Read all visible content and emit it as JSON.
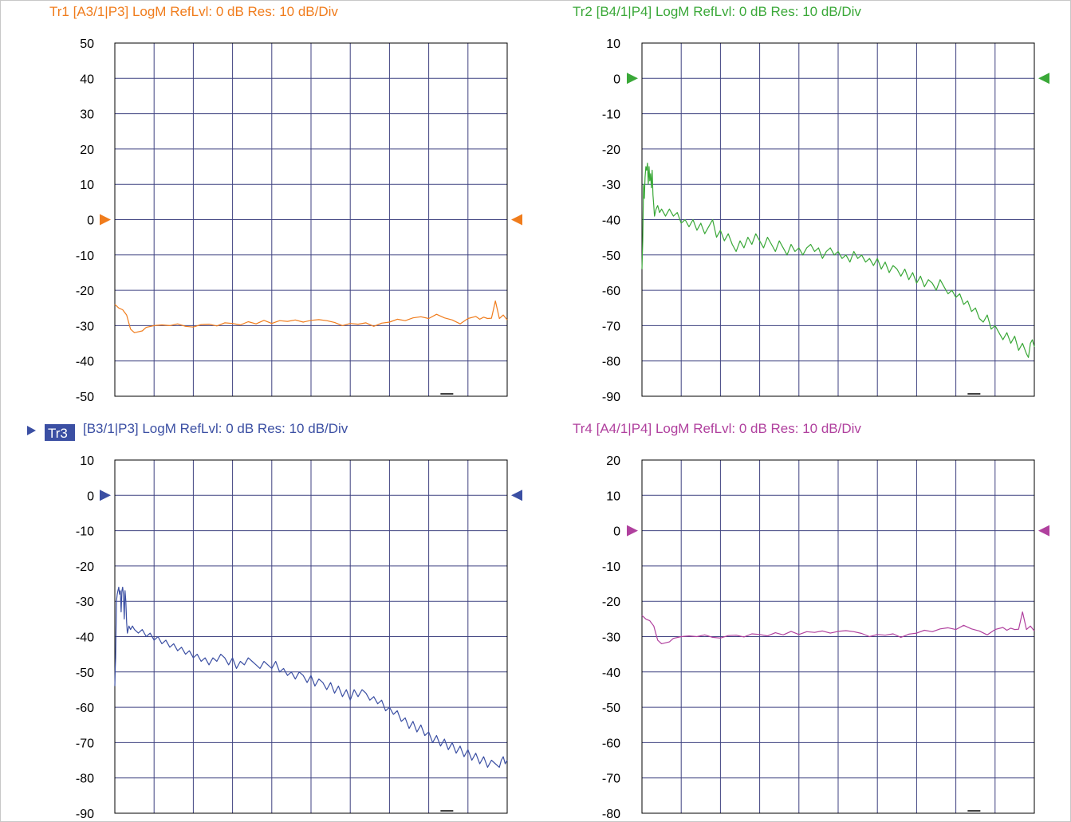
{
  "chart_data": [
    {
      "type": "line",
      "trace": "Tr1",
      "header": "Tr1  [A3/1|P3]  LogM RefLvl: 0  dB Res: 10  dB/Div",
      "color": "#f07c1c",
      "active": false,
      "ylim": [
        -50,
        50
      ],
      "yticks": [
        "50",
        "40",
        "30",
        "20",
        "10",
        "0",
        "-10",
        "-20",
        "-30",
        "-40",
        "-50"
      ],
      "ref_value": 0,
      "x_range": [
        0,
        1
      ],
      "series": [
        {
          "x": [
            0.0,
            0.01,
            0.02,
            0.03,
            0.04,
            0.05,
            0.07,
            0.08,
            0.1,
            0.12,
            0.14,
            0.16,
            0.18,
            0.2,
            0.22,
            0.24,
            0.26,
            0.28,
            0.3,
            0.32,
            0.34,
            0.36,
            0.38,
            0.4,
            0.42,
            0.44,
            0.46,
            0.48,
            0.5,
            0.52,
            0.54,
            0.56,
            0.58,
            0.6,
            0.62,
            0.64,
            0.66,
            0.68,
            0.7,
            0.72,
            0.74,
            0.76,
            0.78,
            0.8,
            0.82,
            0.84,
            0.86,
            0.88,
            0.9,
            0.92,
            0.93,
            0.94,
            0.95,
            0.96,
            0.97,
            0.98,
            0.99,
            1.0
          ],
          "y": [
            -24,
            -25,
            -25.5,
            -27,
            -31,
            -32,
            -31.5,
            -30.5,
            -30,
            -29.8,
            -30,
            -29.5,
            -30.2,
            -30.4,
            -29.7,
            -29.6,
            -30.1,
            -29.2,
            -29.4,
            -29.8,
            -28.9,
            -29.5,
            -28.5,
            -29.4,
            -28.6,
            -28.8,
            -28.4,
            -29,
            -28.5,
            -28.3,
            -28.6,
            -29.1,
            -30,
            -29.4,
            -29.6,
            -29.2,
            -30.2,
            -29.3,
            -29,
            -28.2,
            -28.6,
            -27.8,
            -27.5,
            -28,
            -26.8,
            -27.8,
            -28.4,
            -29.5,
            -28,
            -27.4,
            -28.2,
            -27.6,
            -28,
            -27.9,
            -23,
            -28,
            -27,
            -28.4
          ]
        }
      ]
    },
    {
      "type": "line",
      "trace": "Tr2",
      "header": "Tr2  [B4/1|P4]  LogM RefLvl: 0  dB Res: 10  dB/Div",
      "color": "#3aa838",
      "active": false,
      "ylim": [
        -90,
        10
      ],
      "yticks": [
        "10",
        "0",
        "-10",
        "-20",
        "-30",
        "-40",
        "-50",
        "-60",
        "-70",
        "-80",
        "-90"
      ],
      "ref_value": 0,
      "x_range": [
        0,
        1
      ],
      "series": [
        {
          "x": [
            0.0,
            0.001,
            0.002,
            0.004,
            0.006,
            0.008,
            0.01,
            0.012,
            0.014,
            0.016,
            0.018,
            0.02,
            0.022,
            0.024,
            0.026,
            0.028,
            0.03,
            0.032,
            0.036,
            0.04,
            0.045,
            0.05,
            0.06,
            0.07,
            0.08,
            0.09,
            0.1,
            0.11,
            0.12,
            0.13,
            0.14,
            0.15,
            0.16,
            0.17,
            0.18,
            0.19,
            0.2,
            0.21,
            0.22,
            0.23,
            0.24,
            0.25,
            0.26,
            0.27,
            0.28,
            0.29,
            0.3,
            0.31,
            0.32,
            0.33,
            0.34,
            0.35,
            0.36,
            0.37,
            0.38,
            0.39,
            0.4,
            0.41,
            0.42,
            0.43,
            0.44,
            0.45,
            0.46,
            0.47,
            0.48,
            0.49,
            0.5,
            0.51,
            0.52,
            0.53,
            0.54,
            0.55,
            0.56,
            0.57,
            0.58,
            0.59,
            0.6,
            0.61,
            0.62,
            0.63,
            0.64,
            0.65,
            0.66,
            0.67,
            0.68,
            0.69,
            0.7,
            0.71,
            0.72,
            0.73,
            0.74,
            0.75,
            0.76,
            0.77,
            0.78,
            0.79,
            0.8,
            0.81,
            0.82,
            0.83,
            0.84,
            0.85,
            0.86,
            0.87,
            0.88,
            0.89,
            0.9,
            0.91,
            0.92,
            0.93,
            0.94,
            0.95,
            0.96,
            0.97,
            0.98,
            0.985,
            0.99,
            0.995,
            1.0
          ],
          "y": [
            -54,
            -50,
            -46,
            -30,
            -34,
            -28,
            -25,
            -26,
            -24,
            -30,
            -25,
            -29,
            -27,
            -31,
            -26,
            -33,
            -36,
            -39,
            -37,
            -36,
            -38,
            -37,
            -39,
            -37,
            -39,
            -38,
            -41,
            -40,
            -42,
            -40,
            -43,
            -41,
            -44,
            -42,
            -40,
            -45,
            -43,
            -46,
            -44,
            -47,
            -49,
            -46,
            -48,
            -45,
            -47,
            -44,
            -46,
            -48,
            -45,
            -47,
            -49,
            -46,
            -48,
            -50,
            -47,
            -49,
            -48,
            -50,
            -48,
            -47,
            -49,
            -48,
            -51,
            -49,
            -48,
            -50,
            -49,
            -51,
            -50,
            -52,
            -49,
            -51,
            -50,
            -52,
            -51,
            -53,
            -51,
            -54,
            -52,
            -55,
            -53,
            -54,
            -56,
            -54,
            -57,
            -55,
            -58,
            -56,
            -59,
            -57,
            -58,
            -60,
            -57,
            -59,
            -61,
            -60,
            -62,
            -61,
            -64,
            -63,
            -66,
            -65,
            -68,
            -69,
            -67,
            -71,
            -70,
            -72,
            -74,
            -72,
            -75,
            -73,
            -77,
            -75,
            -78,
            -79,
            -75,
            -74,
            -76
          ]
        }
      ]
    },
    {
      "type": "line",
      "trace": "Tr3",
      "header": "[B3/1|P3]  LogM RefLvl: 0  dB Res: 10  dB/Div",
      "color": "#3b4fa3",
      "active": true,
      "ylim": [
        -90,
        10
      ],
      "yticks": [
        "10",
        "0",
        "-10",
        "-20",
        "-30",
        "-40",
        "-50",
        "-60",
        "-70",
        "-80",
        "-90"
      ],
      "ref_value": 0,
      "x_range": [
        0,
        1
      ],
      "series": [
        {
          "x": [
            0.0,
            0.001,
            0.002,
            0.004,
            0.006,
            0.008,
            0.01,
            0.012,
            0.014,
            0.016,
            0.018,
            0.02,
            0.022,
            0.024,
            0.026,
            0.028,
            0.03,
            0.032,
            0.036,
            0.04,
            0.045,
            0.05,
            0.06,
            0.07,
            0.08,
            0.09,
            0.1,
            0.11,
            0.12,
            0.13,
            0.14,
            0.15,
            0.16,
            0.17,
            0.18,
            0.19,
            0.2,
            0.21,
            0.22,
            0.23,
            0.24,
            0.25,
            0.26,
            0.27,
            0.28,
            0.29,
            0.3,
            0.31,
            0.32,
            0.33,
            0.34,
            0.35,
            0.36,
            0.37,
            0.38,
            0.39,
            0.4,
            0.41,
            0.42,
            0.43,
            0.44,
            0.45,
            0.46,
            0.47,
            0.48,
            0.49,
            0.5,
            0.51,
            0.52,
            0.53,
            0.54,
            0.55,
            0.56,
            0.57,
            0.58,
            0.59,
            0.6,
            0.61,
            0.62,
            0.63,
            0.64,
            0.65,
            0.66,
            0.67,
            0.68,
            0.69,
            0.7,
            0.71,
            0.72,
            0.73,
            0.74,
            0.75,
            0.76,
            0.77,
            0.78,
            0.79,
            0.8,
            0.81,
            0.82,
            0.83,
            0.84,
            0.85,
            0.86,
            0.87,
            0.88,
            0.89,
            0.9,
            0.91,
            0.92,
            0.93,
            0.94,
            0.95,
            0.96,
            0.97,
            0.98,
            0.985,
            0.99,
            0.995,
            1.0
          ],
          "y": [
            -54,
            -49,
            -46,
            -30,
            -28,
            -27,
            -26,
            -28,
            -27,
            -33,
            -27,
            -26,
            -28,
            -35,
            -27,
            -30,
            -36,
            -39,
            -37,
            -38,
            -37,
            -38,
            -39,
            -38,
            -40,
            -39,
            -41,
            -40,
            -42,
            -41,
            -43,
            -42,
            -44,
            -43,
            -45,
            -44,
            -46,
            -45,
            -47,
            -46,
            -48,
            -46,
            -47,
            -45,
            -46,
            -48,
            -46,
            -49,
            -47,
            -48,
            -46,
            -47,
            -48,
            -49,
            -47,
            -48,
            -49,
            -47,
            -50,
            -49,
            -51,
            -50,
            -52,
            -50,
            -51,
            -53,
            -51,
            -54,
            -52,
            -53,
            -55,
            -53,
            -56,
            -54,
            -57,
            -55,
            -58,
            -55,
            -57,
            -55,
            -56,
            -58,
            -57,
            -59,
            -58,
            -61,
            -60,
            -62,
            -61,
            -64,
            -63,
            -66,
            -64,
            -67,
            -65,
            -68,
            -67,
            -70,
            -68,
            -71,
            -69,
            -72,
            -70,
            -73,
            -71,
            -74,
            -72,
            -75,
            -73,
            -76,
            -74,
            -77,
            -75,
            -76,
            -77,
            -75,
            -74,
            -76,
            -75
          ]
        }
      ]
    },
    {
      "type": "line",
      "trace": "Tr4",
      "header": "Tr4  [A4/1|P4]  LogM RefLvl: 0  dB Res: 10  dB/Div",
      "color": "#b0409e",
      "active": false,
      "ylim": [
        -80,
        20
      ],
      "yticks": [
        "20",
        "10",
        "0",
        "-10",
        "-20",
        "-30",
        "-40",
        "-50",
        "-60",
        "-70",
        "-80"
      ],
      "ref_value": 0,
      "x_range": [
        0,
        1
      ],
      "series": [
        {
          "x": [
            0.0,
            0.01,
            0.02,
            0.03,
            0.04,
            0.05,
            0.07,
            0.08,
            0.1,
            0.12,
            0.14,
            0.16,
            0.18,
            0.2,
            0.22,
            0.24,
            0.26,
            0.28,
            0.3,
            0.32,
            0.34,
            0.36,
            0.38,
            0.4,
            0.42,
            0.44,
            0.46,
            0.48,
            0.5,
            0.52,
            0.54,
            0.56,
            0.58,
            0.6,
            0.62,
            0.64,
            0.66,
            0.68,
            0.7,
            0.72,
            0.74,
            0.76,
            0.78,
            0.8,
            0.82,
            0.84,
            0.86,
            0.88,
            0.9,
            0.92,
            0.93,
            0.94,
            0.95,
            0.96,
            0.97,
            0.98,
            0.99,
            1.0
          ],
          "y": [
            -24,
            -25,
            -25.5,
            -27,
            -31,
            -32,
            -31.5,
            -30.5,
            -30,
            -29.8,
            -30,
            -29.5,
            -30.2,
            -30.4,
            -29.7,
            -29.6,
            -30.1,
            -29.2,
            -29.4,
            -29.8,
            -28.9,
            -29.5,
            -28.5,
            -29.4,
            -28.6,
            -28.8,
            -28.4,
            -29,
            -28.5,
            -28.3,
            -28.6,
            -29.1,
            -30,
            -29.4,
            -29.6,
            -29.2,
            -30.2,
            -29.3,
            -29,
            -28.2,
            -28.6,
            -27.8,
            -27.5,
            -28,
            -26.8,
            -27.8,
            -28.4,
            -29.5,
            -28,
            -27.4,
            -28.2,
            -27.6,
            -28,
            -27.9,
            -23,
            -28,
            -27,
            -28.4
          ]
        }
      ]
    }
  ]
}
